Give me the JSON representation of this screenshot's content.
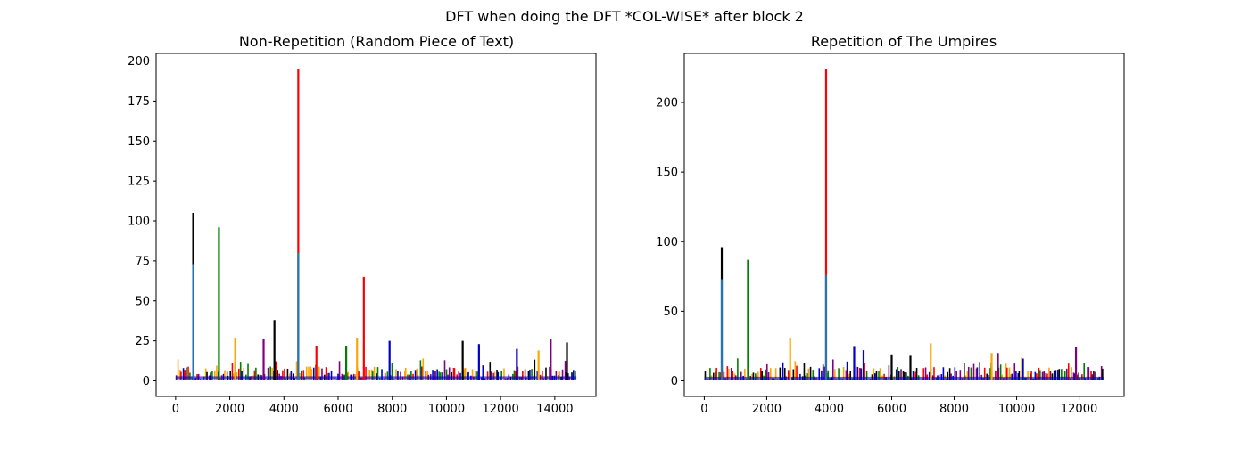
{
  "figure": {
    "suptitle": "DFT when doing the DFT *COL-WISE* after block 2",
    "palette": [
      "#1f77b4",
      "#0000cc",
      "#ff0000",
      "#008000",
      "#000000",
      "#ffa500",
      "#800080"
    ]
  },
  "chart_data": [
    {
      "type": "line",
      "title": "Non-Repetition (Random Piece of Text)",
      "xlabel": "",
      "ylabel": "",
      "xlim": [
        -720,
        15520
      ],
      "ylim": [
        -9.75,
        204.75
      ],
      "xticks": [
        0,
        2000,
        4000,
        6000,
        8000,
        10000,
        12000,
        14000
      ],
      "yticks": [
        0,
        25,
        50,
        75,
        100,
        125,
        150,
        175,
        200
      ],
      "grid": false,
      "n_points": 14800,
      "baseline_max": 8,
      "peaks": [
        {
          "x": 650,
          "y": 105,
          "color": "#000000"
        },
        {
          "x": 650,
          "y": 73,
          "color": "#1f77b4"
        },
        {
          "x": 1600,
          "y": 96,
          "color": "#008000"
        },
        {
          "x": 3650,
          "y": 38,
          "color": "#000000"
        },
        {
          "x": 4530,
          "y": 195,
          "color": "#ff0000"
        },
        {
          "x": 4530,
          "y": 80,
          "color": "#1f77b4"
        },
        {
          "x": 6950,
          "y": 65,
          "color": "#ff0000"
        },
        {
          "x": 2200,
          "y": 27,
          "color": "#ffa500"
        },
        {
          "x": 3250,
          "y": 26,
          "color": "#800080"
        },
        {
          "x": 6700,
          "y": 27,
          "color": "#ffa500"
        },
        {
          "x": 7900,
          "y": 25,
          "color": "#0000cc"
        },
        {
          "x": 10600,
          "y": 25,
          "color": "#000000"
        },
        {
          "x": 11200,
          "y": 23,
          "color": "#0000cc"
        },
        {
          "x": 13850,
          "y": 26,
          "color": "#800080"
        },
        {
          "x": 14450,
          "y": 24,
          "color": "#000000"
        },
        {
          "x": 5200,
          "y": 22,
          "color": "#ff0000"
        },
        {
          "x": 6300,
          "y": 22,
          "color": "#008000"
        },
        {
          "x": 12600,
          "y": 20,
          "color": "#0000cc"
        },
        {
          "x": 13400,
          "y": 19,
          "color": "#ffa500"
        }
      ]
    },
    {
      "type": "line",
      "title": "Repetition of The Umpires",
      "xlabel": "",
      "ylabel": "",
      "xlim": [
        -640,
        13440
      ],
      "ylim": [
        -11.2,
        235.2
      ],
      "xticks": [
        0,
        2000,
        4000,
        6000,
        8000,
        10000,
        12000
      ],
      "yticks": [
        0,
        50,
        100,
        150,
        200
      ],
      "grid": false,
      "n_points": 12800,
      "baseline_max": 9,
      "peaks": [
        {
          "x": 560,
          "y": 96,
          "color": "#000000"
        },
        {
          "x": 560,
          "y": 73,
          "color": "#1f77b4"
        },
        {
          "x": 1400,
          "y": 87,
          "color": "#008000"
        },
        {
          "x": 3900,
          "y": 224,
          "color": "#ff0000"
        },
        {
          "x": 3900,
          "y": 76,
          "color": "#1f77b4"
        },
        {
          "x": 2750,
          "y": 31,
          "color": "#ffa500"
        },
        {
          "x": 7250,
          "y": 27,
          "color": "#ffa500"
        },
        {
          "x": 4800,
          "y": 25,
          "color": "#0000cc"
        },
        {
          "x": 11900,
          "y": 24,
          "color": "#800080"
        },
        {
          "x": 5100,
          "y": 22,
          "color": "#0000cc"
        },
        {
          "x": 9200,
          "y": 20,
          "color": "#ffa500"
        },
        {
          "x": 6000,
          "y": 19,
          "color": "#000000"
        },
        {
          "x": 9400,
          "y": 20,
          "color": "#800080"
        },
        {
          "x": 6600,
          "y": 18,
          "color": "#000000"
        },
        {
          "x": 10200,
          "y": 16,
          "color": "#0000cc"
        }
      ]
    }
  ]
}
